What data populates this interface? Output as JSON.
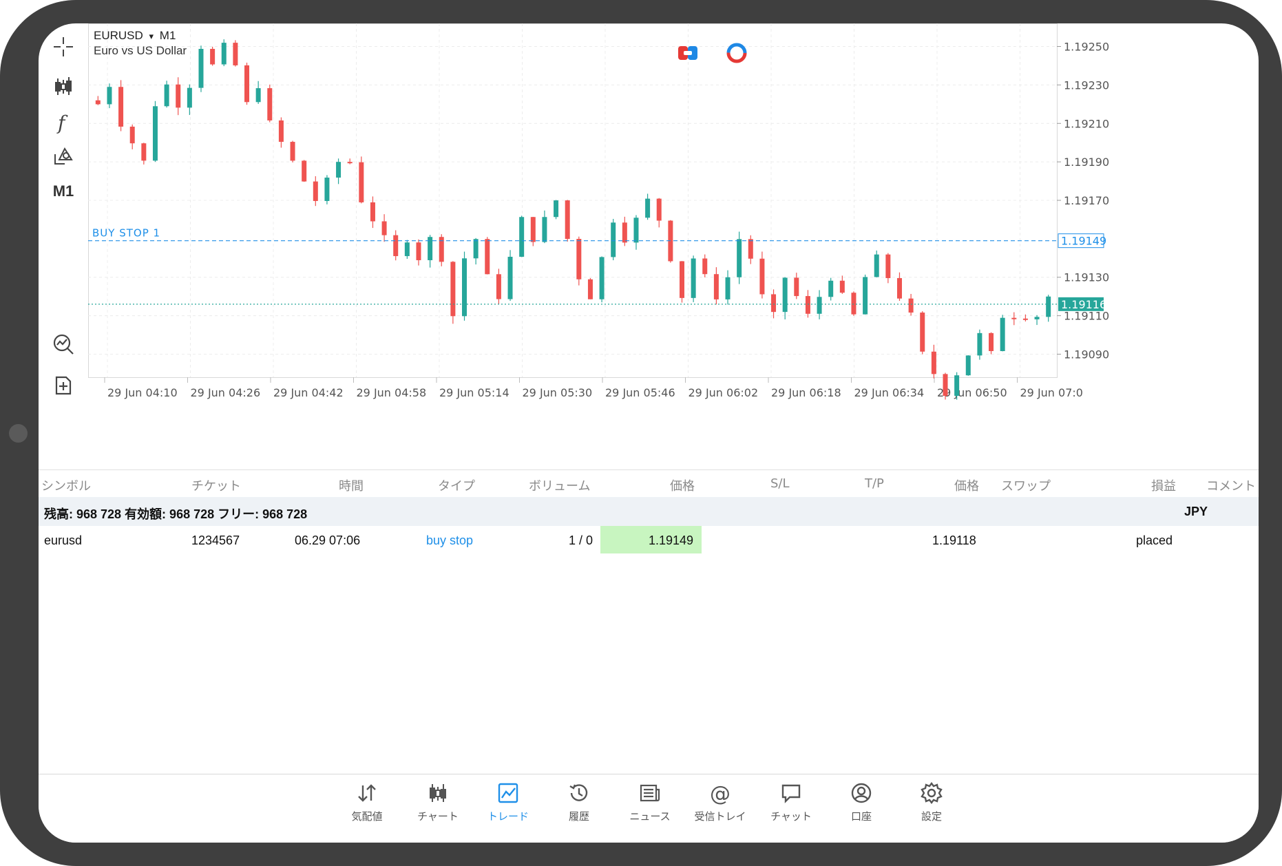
{
  "symbol": {
    "name": "EURUSD",
    "caret": "▾",
    "timeframe": "M1",
    "description": "Euro vs US Dollar"
  },
  "toolbar": {
    "items": [
      {
        "name": "crosshair-icon"
      },
      {
        "name": "chart-type-icon"
      },
      {
        "name": "indicators-icon"
      },
      {
        "name": "objects-icon"
      },
      {
        "name": "timeframe",
        "label": "M1"
      },
      {
        "name": "trade-icon"
      },
      {
        "name": "new-order-icon"
      }
    ]
  },
  "chart_data": {
    "type": "candlestick",
    "y_range": [
      1.19078,
      1.19262
    ],
    "y_ticks": [
      "1.19250",
      "1.19230",
      "1.19210",
      "1.19190",
      "1.19170",
      "1.19130",
      "1.19110",
      "1.19090"
    ],
    "x_ticks": [
      "29 Jun 04:10",
      "29 Jun 04:26",
      "29 Jun 04:42",
      "29 Jun 04:58",
      "29 Jun 05:14",
      "29 Jun 05:30",
      "29 Jun 05:46",
      "29 Jun 06:02",
      "29 Jun 06:18",
      "29 Jun 06:34",
      "29 Jun 06:50",
      "29 Jun 07:0"
    ],
    "close_path": [
      1.1922,
      1.1923,
      1.1921,
      1.192,
      1.1919,
      1.1922,
      1.1923,
      1.1922,
      1.1923,
      1.1925,
      1.1924,
      1.1925,
      1.1924,
      1.1922,
      1.1923,
      1.1921,
      1.192,
      1.1919,
      1.1918,
      1.1917,
      1.1918,
      1.1919,
      1.1919,
      1.1917,
      1.1916,
      1.1915,
      1.1914,
      1.1915,
      1.1914,
      1.1915,
      1.1914,
      1.1911,
      1.1914,
      1.1915,
      1.1913,
      1.1912,
      1.1914,
      1.1916,
      1.1915,
      1.1916,
      1.1917,
      1.1915,
      1.1913,
      1.1912,
      1.1914,
      1.1916,
      1.1915,
      1.1916,
      1.1917,
      1.1916,
      1.1914,
      1.1912,
      1.1914,
      1.1913,
      1.1912,
      1.1913,
      1.1915,
      1.1914,
      1.1912,
      1.1911,
      1.1913,
      1.1912,
      1.1911,
      1.1912,
      1.1913,
      1.1912,
      1.1911,
      1.1913,
      1.1914,
      1.1913,
      1.1912,
      1.1911,
      1.1909,
      1.1908,
      1.1907,
      1.1908,
      1.1909,
      1.191,
      1.1909,
      1.1911,
      1.1911,
      1.1911,
      1.1911,
      1.1912
    ],
    "buy_stop_price": "1.19149",
    "buy_stop_label": "BUY STOP 1",
    "bid_price": "1.19116",
    "colors": {
      "up": "#26a69a",
      "down": "#ef5350",
      "buy_stop": "#1e8fe8",
      "bid": "#26a69a"
    }
  },
  "table": {
    "headers": [
      "シンボル",
      "チケット",
      "時間",
      "タイプ",
      "ボリューム",
      "価格",
      "S/L",
      "T/P",
      "価格",
      "スワップ",
      "損益",
      "コメント"
    ],
    "balance": {
      "text": "残高: 968 728 有効額: 968 728 フリー: 968 728",
      "currency": "JPY"
    },
    "rows": [
      {
        "symbol": "eurusd",
        "ticket": "1234567",
        "time": "06.29 07:06",
        "type": "buy stop",
        "volume": "1 / 0",
        "price": "1.19149",
        "current_price": "1.19118",
        "comment": "placed"
      }
    ]
  },
  "nav": {
    "items": [
      {
        "label": "気配値",
        "icon": "quotes-icon",
        "active": false
      },
      {
        "label": "チャート",
        "icon": "chart-icon",
        "active": false
      },
      {
        "label": "トレード",
        "icon": "trade-icon",
        "active": true
      },
      {
        "label": "履歴",
        "icon": "history-icon",
        "active": false
      },
      {
        "label": "ニュース",
        "icon": "news-icon",
        "active": false
      },
      {
        "label": "受信トレイ",
        "icon": "mailbox-icon",
        "active": false
      },
      {
        "label": "チャット",
        "icon": "chat-icon",
        "active": false
      },
      {
        "label": "口座",
        "icon": "account-icon",
        "active": false
      },
      {
        "label": "設定",
        "icon": "settings-icon",
        "active": false
      }
    ]
  }
}
